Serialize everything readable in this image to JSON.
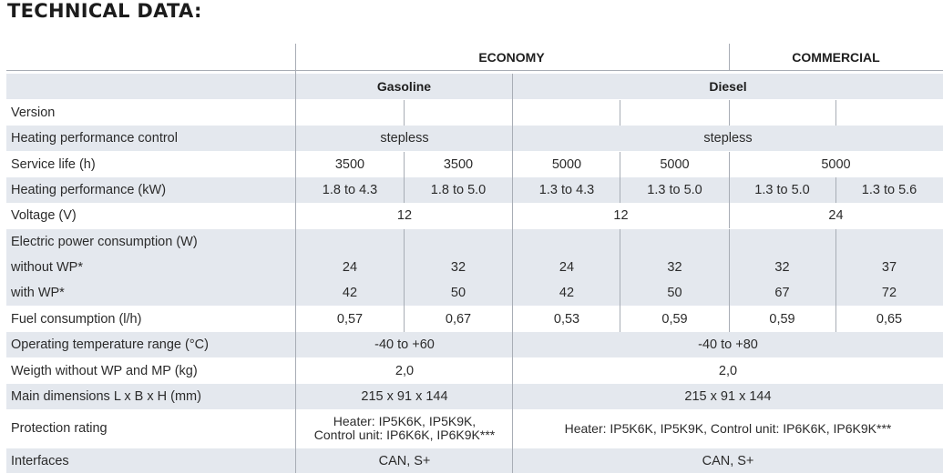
{
  "title": "TECHNICAL DATA:",
  "groups": {
    "economy": "ECONOMY",
    "commercial": "COMMERCIAL"
  },
  "fuels": {
    "gasoline": "Gasoline",
    "diesel": "Diesel"
  },
  "rows": {
    "version": {
      "label": "Version"
    },
    "control": {
      "label": "Heating performance control",
      "gasoline": "stepless",
      "diesel": "stepless"
    },
    "service_life": {
      "label": "Service life (h)",
      "values": [
        "3500",
        "3500",
        "5000",
        "5000",
        "5000"
      ]
    },
    "heating_perf": {
      "label": "Heating performance (kW)",
      "values": [
        "1.8 to 4.3",
        "1.8 to 5.0",
        "1.3 to 4.3",
        "1.3 to 5.0",
        "1.3 to 5.0",
        "1.3 to 5.6"
      ]
    },
    "voltage": {
      "label": "Voltage (V)",
      "values": [
        "12",
        "12",
        "24"
      ]
    },
    "elec_power": {
      "label": "Electric power consumption (W)"
    },
    "without_wp": {
      "label": "without WP*",
      "values": [
        "24",
        "32",
        "24",
        "32",
        "32",
        "37"
      ]
    },
    "with_wp": {
      "label": "with WP*",
      "values": [
        "42",
        "50",
        "42",
        "50",
        "67",
        "72"
      ]
    },
    "fuel_cons": {
      "label": "Fuel consumption (l/h)",
      "values": [
        "0,57",
        "0,67",
        "0,53",
        "0,59",
        "0,59",
        "0,65"
      ]
    },
    "op_temp": {
      "label": "Operating temperature range (°C)",
      "gasoline": "-40 to +60",
      "diesel": "-40 to +80"
    },
    "weight": {
      "label": "Weigth without WP and MP (kg)",
      "gasoline": "2,0",
      "diesel": "2,0"
    },
    "dimensions": {
      "label": "Main dimensions L x B x H (mm)",
      "gasoline": "215 x 91 x 144",
      "diesel": "215 x 91 x 144"
    },
    "protection": {
      "label": "Protection rating",
      "gasoline_line1": "Heater: IP5K6K, IP5K9K,",
      "gasoline_line2": "Control unit: IP6K6K, IP6K9K***",
      "diesel": "Heater: IP5K6K, IP5K9K, Control unit: IP6K6K, IP6K9K***"
    },
    "interfaces": {
      "label": "Interfaces",
      "gasoline": "CAN, S+",
      "diesel": "CAN, S+"
    }
  }
}
